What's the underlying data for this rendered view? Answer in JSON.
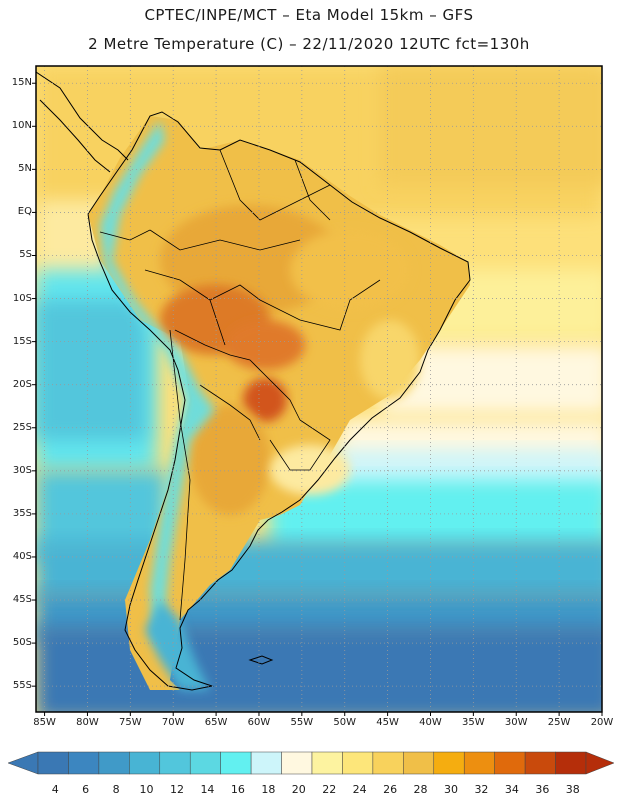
{
  "title": {
    "line1": "CPTEC/INPE/MCT –  Eta Model 15km – GFS",
    "line2": "2 Metre Temperature (C) – 22/11/2020 12UTC fct=130h"
  },
  "map": {
    "lat_labels": [
      "15N",
      "10N",
      "5N",
      "EQ",
      "5S",
      "10S",
      "15S",
      "20S",
      "25S",
      "30S",
      "35S",
      "40S",
      "45S",
      "50S",
      "55S"
    ],
    "lon_labels": [
      "85W",
      "80W",
      "75W",
      "70W",
      "65W",
      "60W",
      "55W",
      "50W",
      "45W",
      "40W",
      "35W",
      "30W",
      "25W",
      "20W"
    ],
    "lat_range": [
      -58,
      17
    ],
    "lon_range": [
      -86,
      -20
    ]
  },
  "colorbar": {
    "labels": [
      "4",
      "6",
      "8",
      "10",
      "12",
      "14",
      "16",
      "18",
      "20",
      "22",
      "24",
      "26",
      "28",
      "30",
      "32",
      "34",
      "36",
      "38"
    ],
    "colors": [
      "#3a78b4",
      "#3c86c0",
      "#409ac8",
      "#48b4d4",
      "#52c6dc",
      "#5cd8e2",
      "#62f0f0",
      "#cdf5fa",
      "#fff8e0",
      "#fdf3a0",
      "#fde67a",
      "#f8d25c",
      "#f0bf48",
      "#f5ad10",
      "#ed8f10",
      "#e06a0c",
      "#c94a0c",
      "#b52e0a"
    ]
  }
}
